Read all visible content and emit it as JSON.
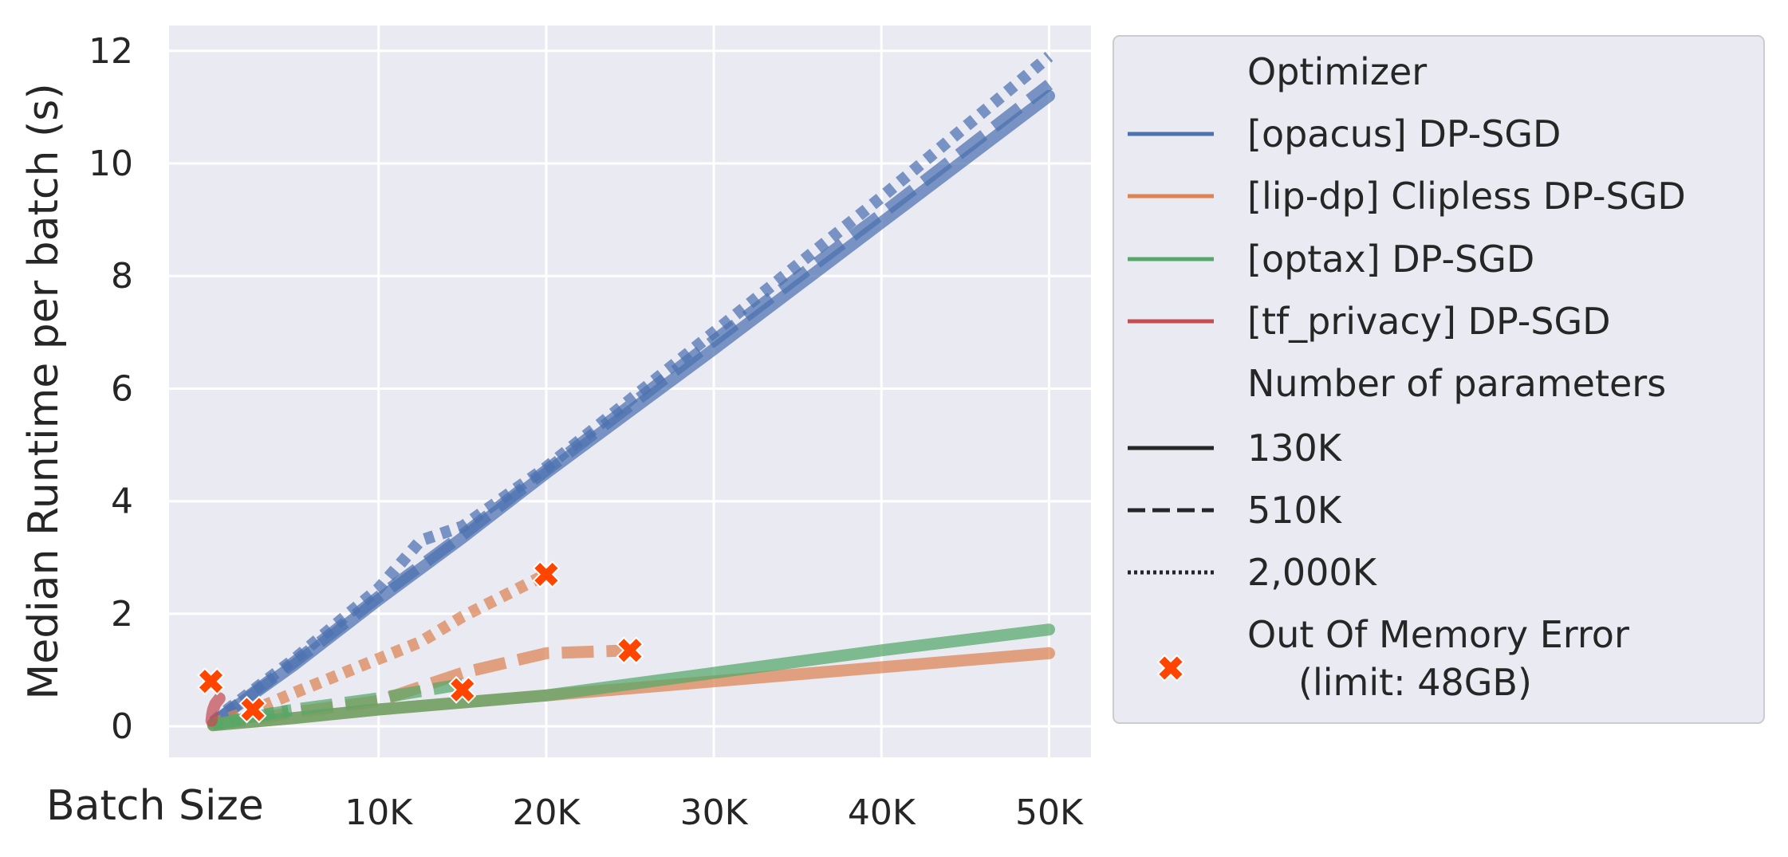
{
  "chart_data": {
    "type": "line",
    "xlabel": "Batch Size",
    "ylabel": "Median Runtime per batch (s)",
    "xlim": [
      -2500,
      52500
    ],
    "ylim": [
      -0.55,
      12.45
    ],
    "x_ticks": [
      10000,
      20000,
      30000,
      40000,
      50000
    ],
    "x_tick_labels": [
      "10K",
      "20K",
      "30K",
      "40K",
      "50K"
    ],
    "y_ticks": [
      0,
      2,
      4,
      6,
      8,
      10,
      12
    ],
    "y_tick_labels": [
      "0",
      "2",
      "4",
      "6",
      "8",
      "10",
      "12"
    ],
    "grid": true,
    "legend_placement": "outside-right",
    "legend": {
      "optimizer_title": "Optimizer",
      "optimizers": [
        {
          "label": "[opacus] DP-SGD",
          "color": "#4c72b0"
        },
        {
          "label": "[lip-dp] Clipless DP-SGD",
          "color": "#dd8452"
        },
        {
          "label": "[optax] DP-SGD",
          "color": "#55a868"
        },
        {
          "label": "[tf_privacy] DP-SGD",
          "color": "#c44e52"
        }
      ],
      "params_title": "Number of parameters",
      "params": [
        {
          "label": "130K",
          "style": "solid"
        },
        {
          "label": "510K",
          "style": "dashed"
        },
        {
          "label": "2,000K",
          "style": "dotted"
        }
      ],
      "oom_label_line1": "Out Of Memory Error",
      "oom_label_line2": "(limit: 48GB)",
      "oom_color": "#ff4500"
    },
    "series": [
      {
        "optimizer": "opacus",
        "params": "130K",
        "style": "solid",
        "color": "#4c72b0",
        "x": [
          128,
          1000,
          5000,
          10000,
          15000,
          20000,
          30000,
          40000,
          50000
        ],
        "y": [
          0.05,
          0.25,
          1.1,
          2.25,
          3.35,
          4.5,
          6.7,
          8.95,
          11.2
        ]
      },
      {
        "optimizer": "opacus",
        "params": "510K",
        "style": "dashed",
        "color": "#4c72b0",
        "x": [
          128,
          1000,
          5000,
          10000,
          15000,
          20000,
          30000,
          40000,
          50000
        ],
        "y": [
          0.06,
          0.26,
          1.15,
          2.3,
          3.4,
          4.55,
          6.85,
          9.1,
          11.4
        ]
      },
      {
        "optimizer": "opacus",
        "params": "2,000K",
        "style": "dotted",
        "color": "#4c72b0",
        "x": [
          128,
          1000,
          5000,
          10000,
          12500,
          15000,
          20000,
          30000,
          40000,
          50000
        ],
        "y": [
          0.08,
          0.3,
          1.2,
          2.45,
          3.3,
          3.55,
          4.6,
          7.0,
          9.4,
          11.9
        ]
      },
      {
        "optimizer": "lip-dp",
        "params": "130K",
        "style": "solid",
        "color": "#dd8452",
        "x": [
          128,
          5000,
          10000,
          20000,
          30000,
          40000,
          50000
        ],
        "y": [
          0.02,
          0.15,
          0.3,
          0.55,
          0.8,
          1.05,
          1.3
        ]
      },
      {
        "optimizer": "lip-dp",
        "params": "510K",
        "style": "dashed",
        "color": "#dd8452",
        "x": [
          128,
          3000,
          5000,
          10000,
          15000,
          20000,
          25000
        ],
        "y": [
          0.03,
          0.15,
          0.25,
          0.45,
          0.95,
          1.3,
          1.35
        ]
      },
      {
        "optimizer": "lip-dp",
        "params": "2,000K",
        "style": "dotted",
        "color": "#dd8452",
        "x": [
          128,
          3000,
          5000,
          10000,
          12500,
          15000,
          20000
        ],
        "y": [
          0.05,
          0.35,
          0.6,
          1.2,
          1.5,
          1.95,
          2.7
        ]
      },
      {
        "optimizer": "optax",
        "params": "130K",
        "style": "solid",
        "color": "#55a868",
        "x": [
          128,
          5000,
          10000,
          20000,
          30000,
          40000,
          50000
        ],
        "y": [
          0.02,
          0.15,
          0.3,
          0.55,
          0.95,
          1.35,
          1.72
        ]
      },
      {
        "optimizer": "optax",
        "params": "510K",
        "style": "dashed",
        "color": "#55a868",
        "x": [
          128,
          5000,
          10000,
          15000
        ],
        "y": [
          0.03,
          0.3,
          0.5,
          0.75
        ]
      },
      {
        "optimizer": "optax",
        "params": "2,000K",
        "style": "dotted",
        "color": "#55a868",
        "x": [
          128,
          3000,
          5000
        ],
        "y": [
          0.04,
          0.2,
          0.3
        ]
      },
      {
        "optimizer": "tf_privacy",
        "params": "130K",
        "style": "solid",
        "color": "#c44e52",
        "x": [
          32,
          64,
          128,
          256,
          512
        ],
        "y": [
          0.1,
          0.2,
          0.3,
          0.4,
          0.5
        ]
      }
    ],
    "oom_points": [
      {
        "x": 0,
        "y": 0.8
      },
      {
        "x": 2500,
        "y": 0.3
      },
      {
        "x": 15000,
        "y": 0.65
      },
      {
        "x": 20000,
        "y": 2.7
      },
      {
        "x": 25000,
        "y": 1.35
      }
    ]
  }
}
